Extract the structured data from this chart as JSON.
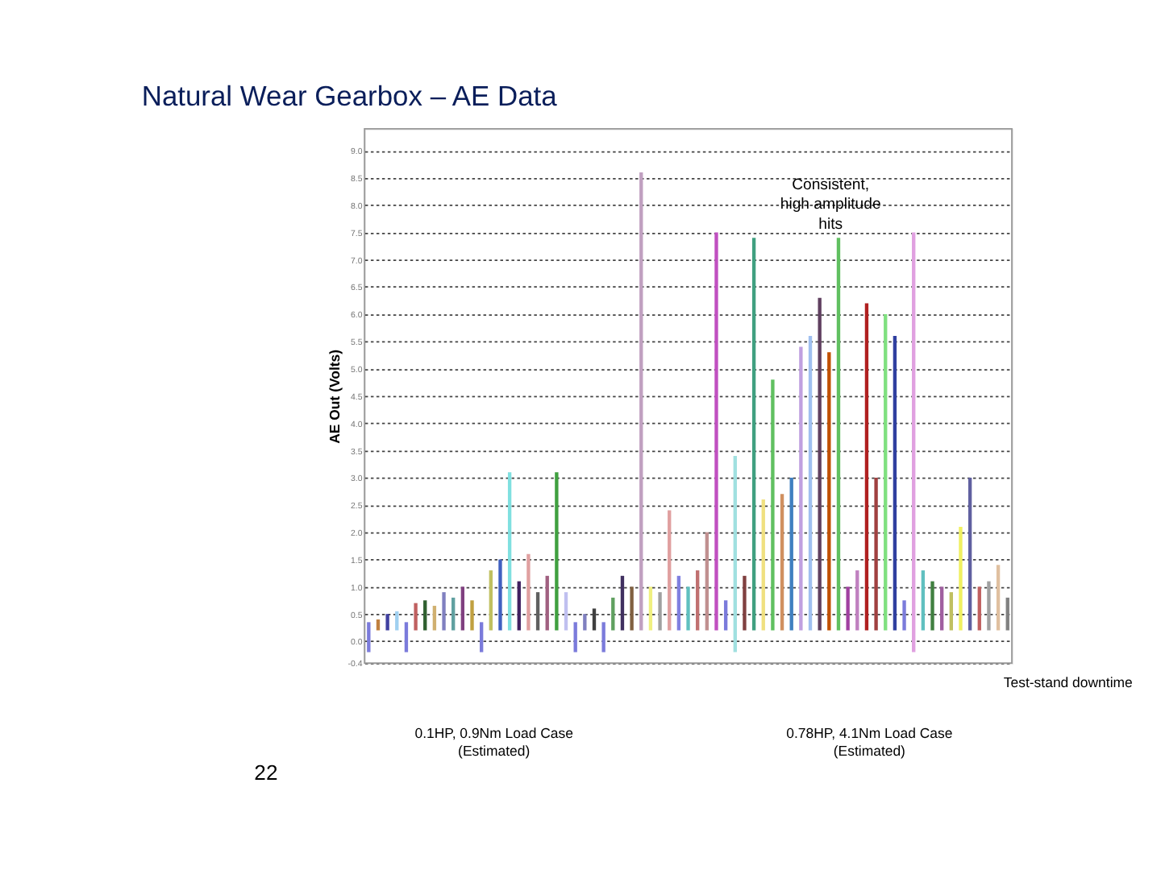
{
  "chart_data": {
    "type": "bar",
    "title": "Natural Wear Gearbox – AE Data",
    "ylabel": "AE Out (Volts)",
    "categories": [
      null,
      null,
      null,
      null,
      null,
      null,
      null,
      null,
      null,
      null,
      null,
      null,
      null,
      null,
      null,
      null,
      null,
      null,
      null,
      null,
      null,
      null,
      null,
      null,
      null,
      null,
      null,
      null,
      null,
      null,
      null,
      null,
      null,
      null,
      null,
      null,
      null,
      null,
      null,
      null,
      null,
      null,
      null,
      null,
      null,
      null,
      null,
      null,
      null,
      null,
      null,
      null,
      null,
      null,
      null,
      null,
      null,
      null,
      null,
      null,
      null,
      null,
      null,
      null,
      null,
      null,
      null,
      null,
      null
    ],
    "base": [
      -0.2,
      0.2,
      0.2,
      0.2,
      -0.2,
      0.2,
      0.2,
      0.2,
      0.2,
      0.2,
      0.2,
      0.2,
      -0.2,
      0.2,
      0.2,
      0.2,
      0.2,
      0.2,
      0.2,
      0.2,
      0.2,
      0.2,
      -0.2,
      0.2,
      0.2,
      -0.2,
      0.2,
      0.2,
      0.2,
      0.2,
      0.2,
      0.2,
      0.2,
      0.2,
      0.2,
      0.2,
      0.2,
      0.2,
      0.2,
      -0.2,
      0.2,
      0.2,
      0.2,
      0.2,
      0.2,
      0.2,
      0.2,
      0.2,
      0.2,
      0.2,
      0.2,
      0.2,
      0.2,
      0.2,
      0.2,
      0.2,
      0.2,
      0.2,
      -0.2,
      0.2,
      0.2,
      0.2,
      0.2,
      0.2,
      0.2,
      0.2,
      0.2,
      0.2,
      0.2
    ],
    "values": [
      0.55,
      0.2,
      0.3,
      0.35,
      0.55,
      0.5,
      0.55,
      0.45,
      0.7,
      0.6,
      0.8,
      0.55,
      0.55,
      1.1,
      1.3,
      2.9,
      0.9,
      1.4,
      0.7,
      1.0,
      2.9,
      0.7,
      0.55,
      0.3,
      0.4,
      0.55,
      0.6,
      1.0,
      0.8,
      8.4,
      0.8,
      0.7,
      2.2,
      1.0,
      0.8,
      1.1,
      1.8,
      7.3,
      0.55,
      3.6,
      1.0,
      7.2,
      2.4,
      4.6,
      2.5,
      2.8,
      5.2,
      5.4,
      6.1,
      5.1,
      7.2,
      0.8,
      1.1,
      6.0,
      2.8,
      5.8,
      5.4,
      0.55,
      7.7,
      1.1,
      0.9,
      0.8,
      0.7,
      1.9,
      2.8,
      0.8,
      0.9,
      1.2,
      0.6
    ],
    "colors": [
      "#7b7bdb",
      "#c08040",
      "#4040a0",
      "#a0d0f0",
      "#7b7bdb",
      "#c06060",
      "#306030",
      "#d0b070",
      "#8080c0",
      "#60a0a0",
      "#804080",
      "#c0a040",
      "#7b7bdb",
      "#c0c060",
      "#4060c0",
      "#80e0e0",
      "#402060",
      "#e0a0a0",
      "#606060",
      "#a06080",
      "#40a040",
      "#c0c0f0",
      "#7b7bdb",
      "#8080c0",
      "#404040",
      "#7b7bdb",
      "#60a060",
      "#403060",
      "#806040",
      "#c0a0c0",
      "#f0f080",
      "#a0a0a0",
      "#e0a0a0",
      "#8080e0",
      "#60c0c0",
      "#c07070",
      "#c09090",
      "#c050c0",
      "#7b7bdb",
      "#a0e0e0",
      "#804040",
      "#40a080",
      "#f0e080",
      "#60c060",
      "#d09060",
      "#4080c0",
      "#c0a0e0",
      "#a0c0f0",
      "#604060",
      "#c05000",
      "#60c060",
      "#a040a0",
      "#c080c0",
      "#b02020",
      "#a04040",
      "#80e080",
      "#3040a0",
      "#7b7bdb",
      "#e0a0e0",
      "#60c0c0",
      "#408040",
      "#a060a0",
      "#c0c060",
      "#f0f060",
      "#6060a0",
      "#c06060",
      "#a0a0a0",
      "#e0c0a0",
      "#808080"
    ],
    "ylim": [
      -0.4,
      9.4
    ],
    "yticks": [
      {
        "value": -0.4,
        "label": "-0.4"
      },
      {
        "value": 0,
        "label": "0.0"
      },
      {
        "value": 0.5,
        "label": "0.5"
      },
      {
        "value": 1,
        "label": "1.0"
      },
      {
        "value": 1.5,
        "label": "1.5"
      },
      {
        "value": 2,
        "label": "2.0"
      },
      {
        "value": 2.5,
        "label": "2.5"
      },
      {
        "value": 3,
        "label": "3.0"
      },
      {
        "value": 3.5,
        "label": "3.5"
      },
      {
        "value": 4,
        "label": "4.0"
      },
      {
        "value": 4.5,
        "label": "4.5"
      },
      {
        "value": 5,
        "label": "5.0"
      },
      {
        "value": 5.5,
        "label": "5.5"
      },
      {
        "value": 6,
        "label": "6.0"
      },
      {
        "value": 6.5,
        "label": "6.5"
      },
      {
        "value": 7,
        "label": "7.0"
      },
      {
        "value": 7.5,
        "label": "7.5"
      },
      {
        "value": 8,
        "label": "8.0"
      },
      {
        "value": 8.5,
        "label": "8.5"
      },
      {
        "value": 9,
        "label": "9.0"
      }
    ],
    "grid": "y",
    "line_style": "dotted",
    "annotations": [
      "Consistent, high amplitude hits",
      "Test-stand downtime",
      "0.1HP, 0.9Nm Load Case (Estimated)",
      "0.78HP, 4.1Nm Load Case (Estimated)",
      "22"
    ]
  }
}
